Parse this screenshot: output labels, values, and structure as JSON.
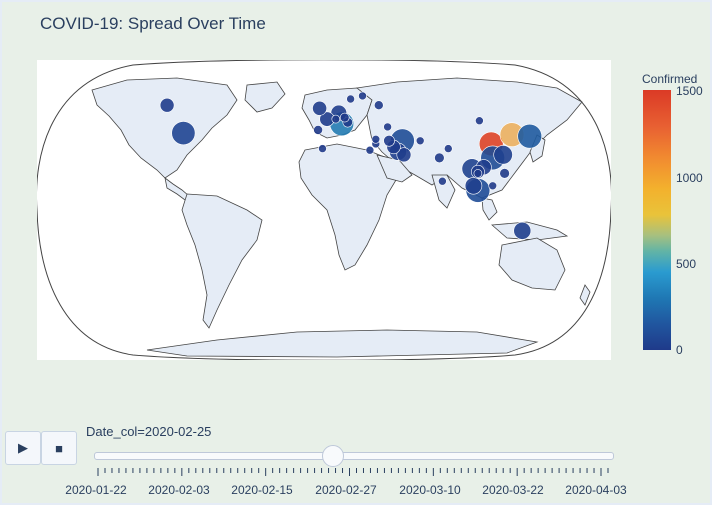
{
  "header": {
    "title": "COVID-19: Spread Over Time"
  },
  "colorbar": {
    "title": "Confirmed",
    "ticks": [
      "1500",
      "1000",
      "500",
      "0"
    ]
  },
  "controls": {
    "play_icon": "play-icon",
    "stop_icon": "stop-icon"
  },
  "slider": {
    "current_label": "Date_col=2020-02-25",
    "position_fraction": 0.46,
    "tick_labels": [
      "2020-01-22",
      "2020-02-03",
      "2020-02-15",
      "2020-02-27",
      "2020-03-10",
      "2020-03-22",
      "2020-04-03"
    ]
  },
  "chart_data": {
    "type": "scatter_geo",
    "title": "COVID-19: Spread Over Time",
    "frame": "2020-02-25",
    "color_variable": "Confirmed",
    "color_range": [
      0,
      1500
    ],
    "projection": "natural earth",
    "points": [
      {
        "lon": 113,
        "lat": 31,
        "value": 1450
      },
      {
        "lon": 127,
        "lat": 37,
        "value": 980
      },
      {
        "lon": 139,
        "lat": 36,
        "value": 160
      },
      {
        "lon": 12,
        "lat": 44,
        "value": 320
      },
      {
        "lon": 53,
        "lat": 33,
        "value": 95
      },
      {
        "lon": -95,
        "lat": 38,
        "value": 55
      },
      {
        "lon": -106,
        "lat": 56,
        "value": 12
      },
      {
        "lon": 134,
        "lat": -25,
        "value": 23
      },
      {
        "lon": 104,
        "lat": 13,
        "value": 10
      },
      {
        "lon": 101,
        "lat": 4,
        "value": 22
      },
      {
        "lon": 104,
        "lat": 1,
        "value": 90
      },
      {
        "lon": 121,
        "lat": 24,
        "value": 30
      },
      {
        "lon": 114,
        "lat": 22,
        "value": 85
      },
      {
        "lon": 2,
        "lat": 47,
        "value": 14
      },
      {
        "lon": 10,
        "lat": 51,
        "value": 18
      },
      {
        "lon": -3,
        "lat": 54,
        "value": 13
      },
      {
        "lon": 54,
        "lat": 24,
        "value": 13
      },
      {
        "lon": 100,
        "lat": 15,
        "value": 37
      },
      {
        "lon": 108,
        "lat": 16,
        "value": 16
      },
      {
        "lon": 122,
        "lat": 12,
        "value": 3
      },
      {
        "lon": 78,
        "lat": 22,
        "value": 3
      },
      {
        "lon": 31,
        "lat": 27,
        "value": 1
      },
      {
        "lon": 44,
        "lat": 33,
        "value": 5
      },
      {
        "lon": 50,
        "lat": 26,
        "value": 23
      },
      {
        "lon": 47,
        "lat": 29,
        "value": 11
      },
      {
        "lon": 35,
        "lat": 31,
        "value": 1
      },
      {
        "lon": 35,
        "lat": 34,
        "value": 1
      },
      {
        "lon": 8,
        "lat": 47,
        "value": 1
      },
      {
        "lon": 14,
        "lat": 48,
        "value": 2
      },
      {
        "lon": 16,
        "lat": 45,
        "value": 3
      },
      {
        "lon": 26,
        "lat": 62,
        "value": 1
      },
      {
        "lon": 18,
        "lat": 60,
        "value": 1
      },
      {
        "lon": -4,
        "lat": 40,
        "value": 2
      },
      {
        "lon": 65,
        "lat": 33,
        "value": 1
      },
      {
        "lon": 84,
        "lat": 28,
        "value": 1
      },
      {
        "lon": 80,
        "lat": 7,
        "value": 1
      },
      {
        "lon": 43,
        "lat": 42,
        "value": 1
      },
      {
        "lon": 105,
        "lat": 46,
        "value": 1
      },
      {
        "lon": 37,
        "lat": 56,
        "value": 2
      },
      {
        "lon": -1,
        "lat": 28,
        "value": 1
      },
      {
        "lon": 104,
        "lat": 12,
        "value": 1
      },
      {
        "lon": 114,
        "lat": 4,
        "value": 1
      }
    ]
  }
}
